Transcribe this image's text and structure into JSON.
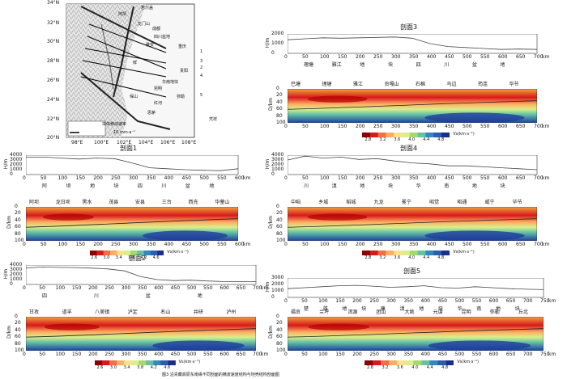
{
  "map": {
    "lat_labels": [
      "34°N",
      "32°N",
      "30°N",
      "28°N",
      "26°N",
      "24°N",
      "22°N",
      "20°N"
    ],
    "lon_labels": [
      "98°E",
      "100°E",
      "102°E",
      "104°E",
      "106°E",
      "108°E"
    ],
    "places": [
      "若尔盖",
      "阿坝",
      "四川盆地",
      "成都",
      "雅安",
      "重庆",
      "贵阳",
      "华南地块",
      "昆明",
      "弥勒",
      "思茅",
      "红河",
      "保山",
      "凭祥",
      "鲜",
      "龙门山"
    ],
    "profile_numbers": [
      "1",
      "2",
      "3",
      "4",
      "5"
    ],
    "legend_label": "块体移动速率",
    "legend_scale": "10 mm·a⁻¹"
  },
  "units": {
    "height_axis": "H/m",
    "depth_axis": "D/km",
    "km": "km",
    "vs_label": "Vs(km·s⁻¹)"
  },
  "profiles": [
    {
      "id": "p3",
      "title": "剖面3",
      "height_ticks": [
        "2000",
        "1000",
        "0"
      ],
      "dist_ticks": [
        "0",
        "50",
        "100",
        "150",
        "200",
        "250",
        "300",
        "350",
        "400",
        "450",
        "500",
        "550",
        "600",
        "650",
        "700"
      ],
      "blocks_row": [
        "理塘",
        "雅江",
        "地",
        "块",
        "四",
        "川",
        "盆",
        "地"
      ],
      "towns": [
        "巴塘",
        "理塘",
        "雅江",
        "贡嘎山",
        "石棉",
        "马边",
        "筠连",
        "华节"
      ],
      "depth_ticks": [
        "0",
        "20",
        "40",
        "60",
        "80",
        "100"
      ],
      "colorbar": [
        "2.8",
        "3.2",
        "3.6",
        "4.0",
        "4.4",
        "4.8"
      ]
    },
    {
      "id": "p1",
      "title": "剖面1",
      "height_ticks": [
        "4000",
        "3000",
        "2000",
        "1000",
        "0"
      ],
      "dist_ticks": [
        "0",
        "50",
        "100",
        "150",
        "200",
        "250",
        "300",
        "350",
        "400",
        "450",
        "500",
        "550",
        "600"
      ],
      "blocks_row": [
        "阿",
        "坝",
        "地",
        "块",
        "四",
        "川",
        "盆",
        "地"
      ],
      "towns": [
        "阿坝",
        "龙日坝",
        "黑水",
        "茂县",
        "安县",
        "三台",
        "西充",
        "华蓥山"
      ],
      "depth_ticks": [
        "0",
        "20",
        "40",
        "60",
        "80",
        "100"
      ],
      "colorbar": [
        "2.6",
        "3.0",
        "3.4",
        "3.8",
        "4.2",
        "4.6"
      ]
    },
    {
      "id": "p4",
      "title": "剖面4",
      "height_ticks": [
        "4000",
        "3000",
        "2000",
        "1000",
        "0"
      ],
      "dist_ticks": [
        "0",
        "50",
        "100",
        "150",
        "200",
        "250",
        "300",
        "350",
        "400",
        "450",
        "500",
        "550",
        "600",
        "650",
        "700"
      ],
      "blocks_row": [
        "川",
        "滇",
        "地",
        "块",
        "华",
        "南",
        "地",
        "块"
      ],
      "towns": [
        "中咱",
        "乡城",
        "稻城",
        "九龙",
        "冕宁",
        "昭觉",
        "昭通",
        "威宁",
        "毕节"
      ],
      "depth_ticks": [
        "0",
        "20",
        "40",
        "60",
        "80",
        "100"
      ],
      "colorbar": [
        "2.8",
        "3.2",
        "3.6",
        "4.0",
        "4.4",
        "4.8"
      ]
    },
    {
      "id": "p2",
      "title": "剖面2",
      "height_ticks": [
        "4000",
        "3000",
        "2000",
        "1000",
        "0"
      ],
      "dist_ticks": [
        "0",
        "50",
        "100",
        "150",
        "200",
        "250",
        "300",
        "350",
        "400",
        "450",
        "500",
        "550",
        "600",
        "650",
        "700"
      ],
      "blocks_row": [
        "四",
        "川",
        "盆",
        "地"
      ],
      "towns": [
        "甘孜",
        "道孚",
        "八美镇",
        "泸定",
        "名山",
        "井研",
        "泸州"
      ],
      "depth_ticks": [
        "0",
        "20",
        "40",
        "60",
        "80",
        "100"
      ],
      "colorbar": [
        "2.6",
        "3.0",
        "3.4",
        "3.8",
        "4.2",
        "4.6"
      ]
    },
    {
      "id": "p5",
      "title": "剖面5",
      "height_ticks": [
        "3000",
        "2000",
        "1000",
        "0"
      ],
      "dist_ticks": [
        "0",
        "50",
        "100",
        "150",
        "200",
        "250",
        "300",
        "350",
        "400",
        "450",
        "500",
        "550",
        "600",
        "650",
        "700",
        "750"
      ],
      "blocks_row": [
        "楚",
        "雄",
        "地",
        "块",
        "康",
        "滇",
        "地",
        "块",
        "华",
        "南",
        "地",
        "块"
      ],
      "towns": [
        "福贡",
        "兰坪",
        "洱源",
        "团山",
        "大姚",
        "元谋",
        "昆明",
        "弥勒",
        "丘北"
      ],
      "depth_ticks": [
        "0",
        "20",
        "40",
        "60",
        "80",
        "100"
      ],
      "colorbar": [
        "2.8",
        "3.2",
        "3.6",
        "4.0",
        "4.4",
        "4.8"
      ]
    }
  ],
  "caption": "图3 沿青藏高原东南缘不同剖面的横波速度结构与地壳结构剖面图"
}
